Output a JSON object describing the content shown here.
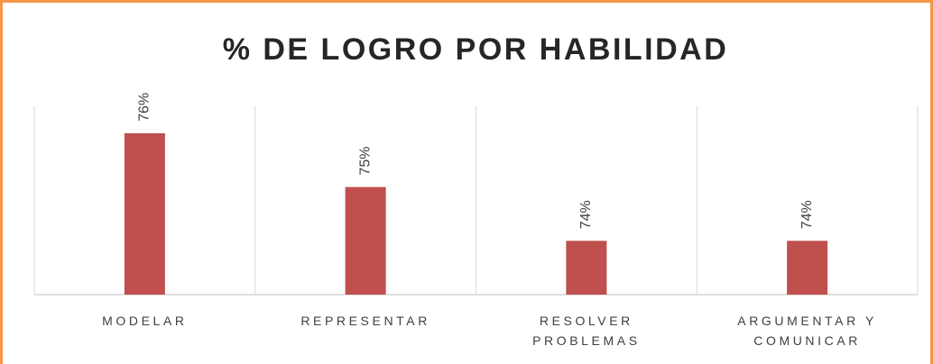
{
  "chart_data": {
    "type": "bar",
    "title": "% DE LOGRO POR HABILIDAD",
    "categories": [
      "MODELAR",
      "REPRESENTAR",
      "RESOLVER PROBLEMAS",
      "ARGUMENTAR Y COMUNICAR"
    ],
    "values": [
      76,
      75,
      74,
      74
    ],
    "value_labels": [
      "76%",
      "75%",
      "74%",
      "74%"
    ],
    "color": "#c0504d",
    "ylim": [
      73,
      76.5
    ]
  }
}
